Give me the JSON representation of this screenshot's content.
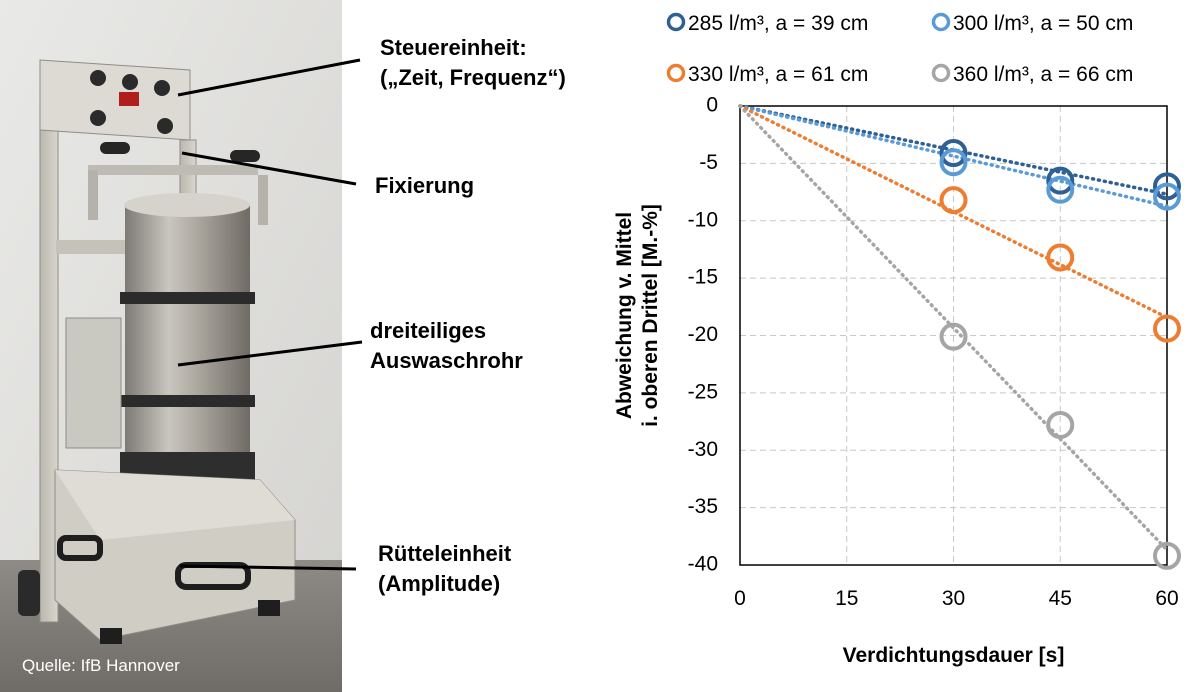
{
  "photo": {
    "source": "Quelle: IfB Hannover",
    "captions": [
      {
        "line1": "Steuereinheit:",
        "line2": "(„Zeit, Frequenz“)"
      },
      {
        "line1": "Fixierung",
        "line2": ""
      },
      {
        "line1": "dreiteiliges",
        "line2": "Auswaschrohr"
      },
      {
        "line1": "Rütteleinheit",
        "line2": "(Amplitude)"
      }
    ]
  },
  "chart_data": {
    "type": "scatter",
    "xlabel": "Verdichtungsdauer [s]",
    "ylabel_line1": "Abweichung v. Mittel",
    "ylabel_line2": "i. oberen Drittel [M.-%]",
    "xlim": [
      0,
      60
    ],
    "ylim": [
      -40,
      0
    ],
    "xticks": [
      0,
      15,
      30,
      45,
      60
    ],
    "yticks": [
      0,
      -5,
      -10,
      -15,
      -20,
      -25,
      -30,
      -35,
      -40
    ],
    "grid": true,
    "legend_position": "top",
    "trendlines": "linear, dotted, through origin",
    "series": [
      {
        "name": "285 l/m³, a = 39 cm",
        "color": "#2e5f95",
        "x": [
          30,
          45,
          60
        ],
        "y": [
          -4.1,
          -6.5,
          -7.0
        ]
      },
      {
        "name": "300 l/m³, a = 50 cm",
        "color": "#5b9bd5",
        "x": [
          30,
          45,
          60
        ],
        "y": [
          -4.9,
          -7.3,
          -7.9
        ]
      },
      {
        "name": "330 l/m³, a = 61 cm",
        "color": "#ed7d31",
        "x": [
          30,
          45,
          60
        ],
        "y": [
          -8.2,
          -13.2,
          -19.4
        ]
      },
      {
        "name": "360 l/m³, a = 66 cm",
        "color": "#a5a5a5",
        "x": [
          30,
          45,
          60
        ],
        "y": [
          -20.1,
          -27.8,
          -39.2
        ]
      }
    ]
  }
}
